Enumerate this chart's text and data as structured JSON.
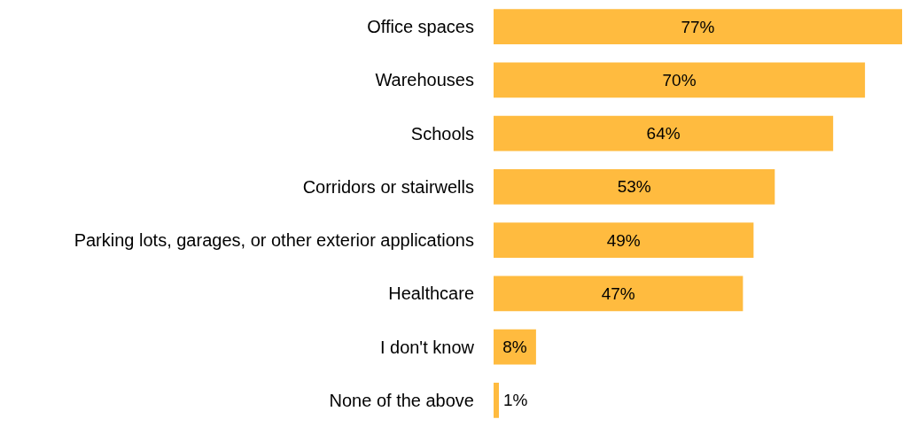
{
  "chart_data": {
    "type": "bar",
    "orientation": "horizontal",
    "categories": [
      "Office spaces",
      "Warehouses",
      "Schools",
      "Corridors or stairwells",
      "Parking lots, garages, or other exterior applications",
      "Healthcare",
      "I don't know",
      "None of the above"
    ],
    "values": [
      77,
      70,
      64,
      53,
      49,
      47,
      8,
      1
    ],
    "color": "#ffbb3f",
    "data_labels": true,
    "value_labels": [
      "77%",
      "70%",
      "64%",
      "53%",
      "49%",
      "47%",
      "8%",
      "1%"
    ]
  }
}
